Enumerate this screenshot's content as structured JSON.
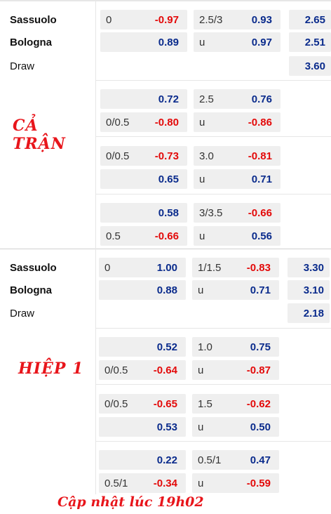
{
  "full": {
    "label": "CẢ TRẬN",
    "teams": [
      "Sassuolo",
      "Bologna",
      "Draw"
    ],
    "rows": [
      {
        "ah_line": "0",
        "ah_val": "-0.97",
        "ou_line": "2.5/3",
        "ou_val": "0.93",
        "x12": "2.65"
      },
      {
        "ah_line": "",
        "ah_val": "0.89",
        "ou_line": "u",
        "ou_val": "0.97",
        "x12": "2.51"
      },
      {
        "x12": "3.60"
      },
      {
        "ah_line": "",
        "ah_val": "0.72",
        "ou_line": "2.5",
        "ou_val": "0.76"
      },
      {
        "ah_line": "0/0.5",
        "ah_val": "-0.80",
        "ou_line": "u",
        "ou_val": "-0.86"
      },
      {
        "ah_line": "0/0.5",
        "ah_val": "-0.73",
        "ou_line": "3.0",
        "ou_val": "-0.81"
      },
      {
        "ah_line": "",
        "ah_val": "0.65",
        "ou_line": "u",
        "ou_val": "0.71"
      },
      {
        "ah_line": "",
        "ah_val": "0.58",
        "ou_line": "3/3.5",
        "ou_val": "-0.66"
      },
      {
        "ah_line": "0.5",
        "ah_val": "-0.66",
        "ou_line": "u",
        "ou_val": "0.56"
      }
    ]
  },
  "half": {
    "label": "HIỆP 1",
    "teams": [
      "Sassuolo",
      "Bologna",
      "Draw"
    ],
    "rows": [
      {
        "ah_line": "0",
        "ah_val": "1.00",
        "ou_line": "1/1.5",
        "ou_val": "-0.83",
        "x12": "3.30"
      },
      {
        "ah_line": "",
        "ah_val": "0.88",
        "ou_line": "u",
        "ou_val": "0.71",
        "x12": "3.10"
      },
      {
        "x12": "2.18"
      },
      {
        "ah_line": "",
        "ah_val": "0.52",
        "ou_line": "1.0",
        "ou_val": "0.75"
      },
      {
        "ah_line": "0/0.5",
        "ah_val": "-0.64",
        "ou_line": "u",
        "ou_val": "-0.87"
      },
      {
        "ah_line": "0/0.5",
        "ah_val": "-0.65",
        "ou_line": "1.5",
        "ou_val": "-0.62"
      },
      {
        "ah_line": "",
        "ah_val": "0.53",
        "ou_line": "u",
        "ou_val": "0.50"
      },
      {
        "ah_line": "",
        "ah_val": "0.22",
        "ou_line": "0.5/1",
        "ou_val": "0.47"
      },
      {
        "ah_line": "0.5/1",
        "ah_val": "-0.34",
        "ou_line": "u",
        "ou_val": "-0.59"
      }
    ]
  },
  "footer": "Cập nhật lúc 19h02"
}
